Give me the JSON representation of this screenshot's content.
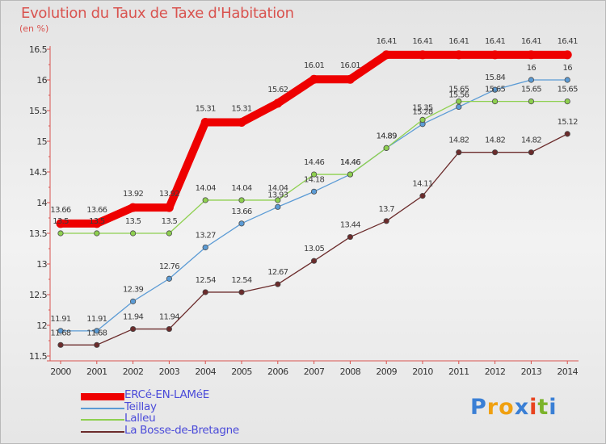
{
  "header": {
    "title": "Evolution du Taux de Taxe d'Habitation",
    "unit": "(en %)"
  },
  "brand": {
    "text": "Proxiti",
    "letters": [
      "P",
      "r",
      "o",
      "x",
      "i",
      "t",
      "i"
    ],
    "colors": [
      "#3a7fd5",
      "#f0a010",
      "#f0a010",
      "#3a7fd5",
      "#e8431f",
      "#7cb32b",
      "#3a7fd5"
    ]
  },
  "chart_data": {
    "type": "line",
    "title": "Evolution du Taux de Taxe d'Habitation",
    "ylabel": "(en %)",
    "xlabel": "",
    "x": [
      "2000",
      "2001",
      "2002",
      "2003",
      "2004",
      "2005",
      "2006",
      "2007",
      "2008",
      "2009",
      "2010",
      "2011",
      "2012",
      "2013",
      "2014"
    ],
    "ylim": [
      11.5,
      16.5
    ],
    "yticks": [
      "11.5",
      "12",
      "12.5",
      "13",
      "13.5",
      "14",
      "14.5",
      "15",
      "15.5",
      "16",
      "16.5"
    ],
    "grid": false,
    "legend_position": "bottom-left",
    "series": [
      {
        "name": "ERCé-EN-LAMéE",
        "color": "#ee0000",
        "values": [
          13.66,
          13.66,
          13.92,
          13.92,
          15.31,
          15.31,
          15.62,
          16.01,
          16.01,
          16.41,
          16.41,
          16.41,
          16.41,
          16.41,
          16.41
        ],
        "labels": [
          "13.66",
          "13.66",
          "13.92",
          "13.92",
          "15.31",
          "15.31",
          "15.62",
          "16.01",
          "16.01",
          "16.41",
          "16.41",
          "16.41",
          "16.41",
          "16.41",
          "16.41"
        ]
      },
      {
        "name": "Teillay",
        "color": "#5b9bd5",
        "values": [
          11.91,
          11.91,
          12.39,
          12.76,
          13.27,
          13.66,
          13.93,
          14.18,
          14.46,
          14.89,
          15.28,
          15.56,
          15.84,
          16,
          16
        ],
        "labels": [
          "11.91",
          "11.91",
          "12.39",
          "12.76",
          "13.27",
          "13.66",
          "13.93",
          "14.18",
          "14.46",
          "14.89",
          "15.28",
          "15.56",
          "15.84",
          "16",
          "16"
        ]
      },
      {
        "name": "Lalleu",
        "color": "#8ed04f",
        "values": [
          13.5,
          13.5,
          13.5,
          13.5,
          14.04,
          14.04,
          14.04,
          14.46,
          14.46,
          14.89,
          15.35,
          15.65,
          15.65,
          15.65,
          15.65
        ],
        "labels": [
          "13.5",
          "13.5",
          "13.5",
          "13.5",
          "14.04",
          "14.04",
          "14.04",
          "14.46",
          "14.46",
          "14.89",
          "15.35",
          "15.65",
          "15.65",
          "15.65",
          "15.65"
        ]
      },
      {
        "name": "La Bosse-de-Bretagne",
        "color": "#6b2b2b",
        "values": [
          11.68,
          11.68,
          11.94,
          11.94,
          12.54,
          12.54,
          12.67,
          13.05,
          13.44,
          13.7,
          14.11,
          14.82,
          14.82,
          14.82,
          15.12
        ],
        "labels": [
          "11.68",
          "11.68",
          "11.94",
          "11.94",
          "12.54",
          "12.54",
          "12.67",
          "13.05",
          "13.44",
          "13.7",
          "14.11",
          "14.82",
          "14.82",
          "14.82",
          "15.12"
        ]
      }
    ]
  }
}
